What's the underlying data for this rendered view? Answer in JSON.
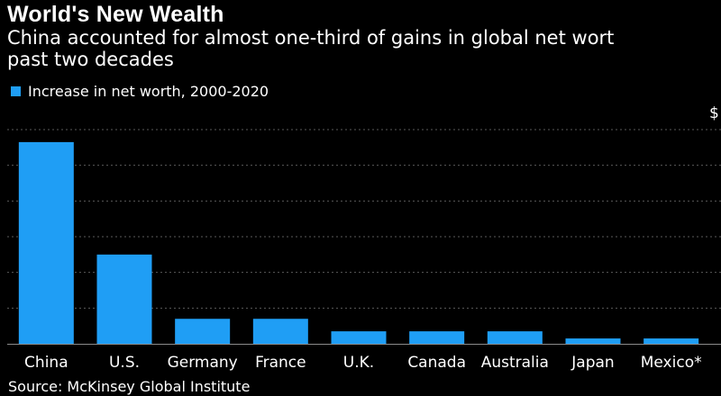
{
  "title": "World's New Wealth",
  "subtitle": "China accounted for almost one-third of gains in global net worth over the past two decades",
  "subtitle_lines": [
    "China accounted for almost one-third of gains in global net wort",
    "past two decades"
  ],
  "unit_label": "$",
  "source": "Source: McKinsey Global Institute",
  "colors": {
    "bar": "#1f9ef5",
    "grid": "#5a5a5a",
    "axis": "#8a8a8a",
    "background": "#000000"
  },
  "chart_data": {
    "type": "bar",
    "title": "World's New Wealth",
    "subtitle": "China accounted for almost one-third of gains in global net worth over the past two decades",
    "legend": [
      "Increase in net worth, 2000-2020"
    ],
    "categories": [
      "China",
      "U.S.",
      "Germany",
      "France",
      "U.K.",
      "Canada",
      "Australia",
      "Japan",
      "Mexico*"
    ],
    "series": [
      {
        "name": "Increase in net worth, 2000-2020",
        "values": [
          113,
          50,
          14,
          14,
          7,
          7,
          7,
          3,
          3
        ]
      }
    ],
    "ylim": [
      0,
      120
    ],
    "yticks": [
      0,
      20,
      40,
      60,
      80,
      100,
      120
    ],
    "grid": true,
    "xlabel": "",
    "ylabel": "$"
  }
}
